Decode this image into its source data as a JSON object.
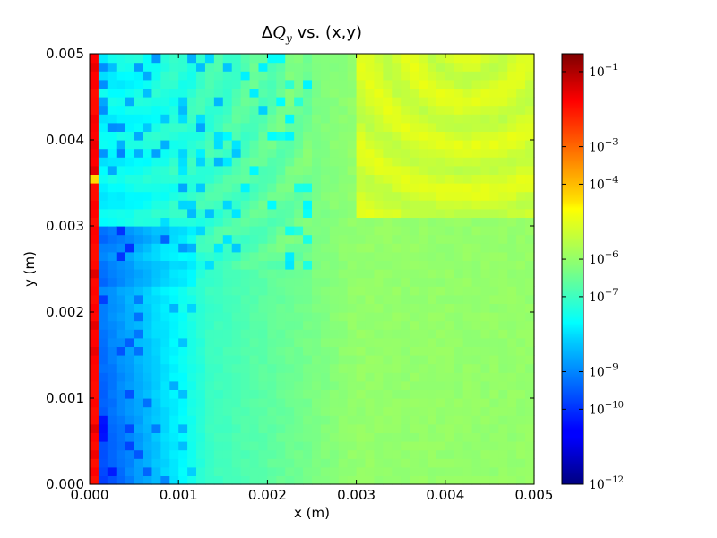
{
  "chart_data": {
    "type": "heatmap",
    "title": "ΔQ_y vs. (x,y)",
    "title_parts": {
      "delta": "Δ",
      "var": "Q",
      "sub": "y",
      "rest": " vs. (x,y)"
    },
    "xlabel": "x (m)",
    "ylabel": "y (m)",
    "xlim": [
      0,
      0.005
    ],
    "ylim": [
      0,
      0.005
    ],
    "x_ticks": [
      0,
      0.001,
      0.002,
      0.003,
      0.004,
      0.005
    ],
    "x_tick_labels": [
      "0.000",
      "0.001",
      "0.002",
      "0.003",
      "0.004",
      "0.005"
    ],
    "y_ticks": [
      0,
      0.001,
      0.002,
      0.003,
      0.004,
      0.005
    ],
    "y_tick_labels": [
      "0.000",
      "0.001",
      "0.002",
      "0.003",
      "0.004",
      "0.005"
    ],
    "grid": false,
    "colormap": "jet",
    "color_scale": "log",
    "grid_cells": [
      50,
      50
    ],
    "color_range": [
      1e-12,
      0.3
    ],
    "colorbar_ticks": [
      {
        "value": 1e-12,
        "base": "10",
        "exp": "−12"
      },
      {
        "value": 1e-10,
        "base": "10",
        "exp": "−10"
      },
      {
        "value": 1e-09,
        "base": "10",
        "exp": "−9"
      },
      {
        "value": 1e-07,
        "base": "10",
        "exp": "−7"
      },
      {
        "value": 1e-06,
        "base": "10",
        "exp": "−6"
      },
      {
        "value": 0.0001,
        "base": "10",
        "exp": "−4"
      },
      {
        "value": 0.001,
        "base": "10",
        "exp": "−3"
      },
      {
        "value": 0.1,
        "base": "10",
        "exp": "−1"
      }
    ]
  }
}
